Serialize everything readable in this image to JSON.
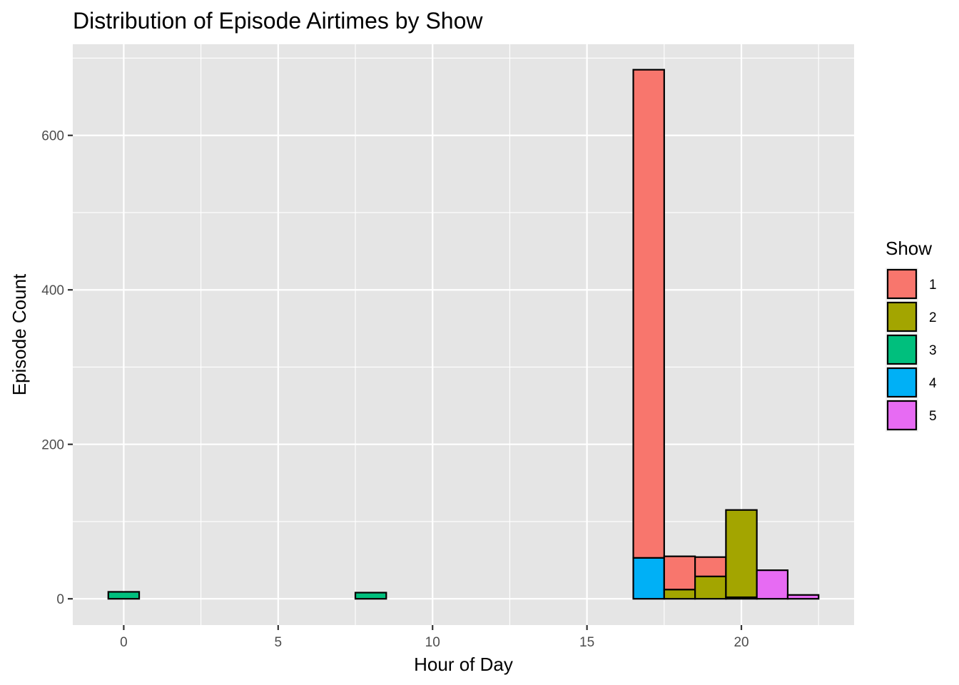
{
  "chart_data": {
    "type": "bar",
    "stacked": true,
    "title": "Distribution of Episode Airtimes by Show",
    "xlabel": "Hour of Day",
    "ylabel": "Episode Count",
    "xlim": [
      -1.65,
      23.65
    ],
    "ylim": [
      -34,
      718
    ],
    "x_ticks": [
      0,
      5,
      10,
      15,
      20
    ],
    "y_ticks": [
      0,
      200,
      400,
      600
    ],
    "bin_width": 1,
    "x": [
      0,
      1,
      2,
      3,
      4,
      5,
      6,
      7,
      8,
      9,
      10,
      11,
      12,
      13,
      14,
      15,
      16,
      17,
      18,
      19,
      20,
      21,
      22
    ],
    "legend": {
      "title": "Show",
      "position": "right"
    },
    "series": [
      {
        "name": "1",
        "color": "#F8766D",
        "values": [
          0,
          0,
          0,
          0,
          0,
          0,
          0,
          0,
          0,
          0,
          0,
          0,
          0,
          0,
          0,
          0,
          0,
          632,
          43,
          25,
          0,
          0,
          0
        ]
      },
      {
        "name": "2",
        "color": "#A3A500",
        "values": [
          0,
          0,
          0,
          0,
          0,
          0,
          0,
          0,
          0,
          0,
          0,
          0,
          0,
          0,
          0,
          0,
          0,
          0,
          12,
          29,
          113,
          0,
          0
        ]
      },
      {
        "name": "3",
        "color": "#00BF7D",
        "values": [
          9,
          0,
          0,
          0,
          0,
          0,
          0,
          0,
          8,
          0,
          0,
          0,
          0,
          0,
          0,
          0,
          0,
          0,
          0,
          0,
          0,
          0,
          0
        ]
      },
      {
        "name": "4",
        "color": "#00B0F6",
        "values": [
          0,
          0,
          0,
          0,
          0,
          0,
          0,
          0,
          0,
          0,
          0,
          0,
          0,
          0,
          0,
          0,
          0,
          53,
          0,
          0,
          0,
          0,
          0
        ]
      },
      {
        "name": "5",
        "color": "#E76BF3",
        "values": [
          0,
          0,
          0,
          0,
          0,
          0,
          0,
          0,
          0,
          0,
          0,
          0,
          0,
          0,
          0,
          0,
          0,
          0,
          0,
          0,
          2,
          37,
          5
        ]
      }
    ],
    "panel_background": "#E5E5E5",
    "grid": true,
    "grid_color": "#FFFFFF",
    "bar_outline": "#000000"
  }
}
